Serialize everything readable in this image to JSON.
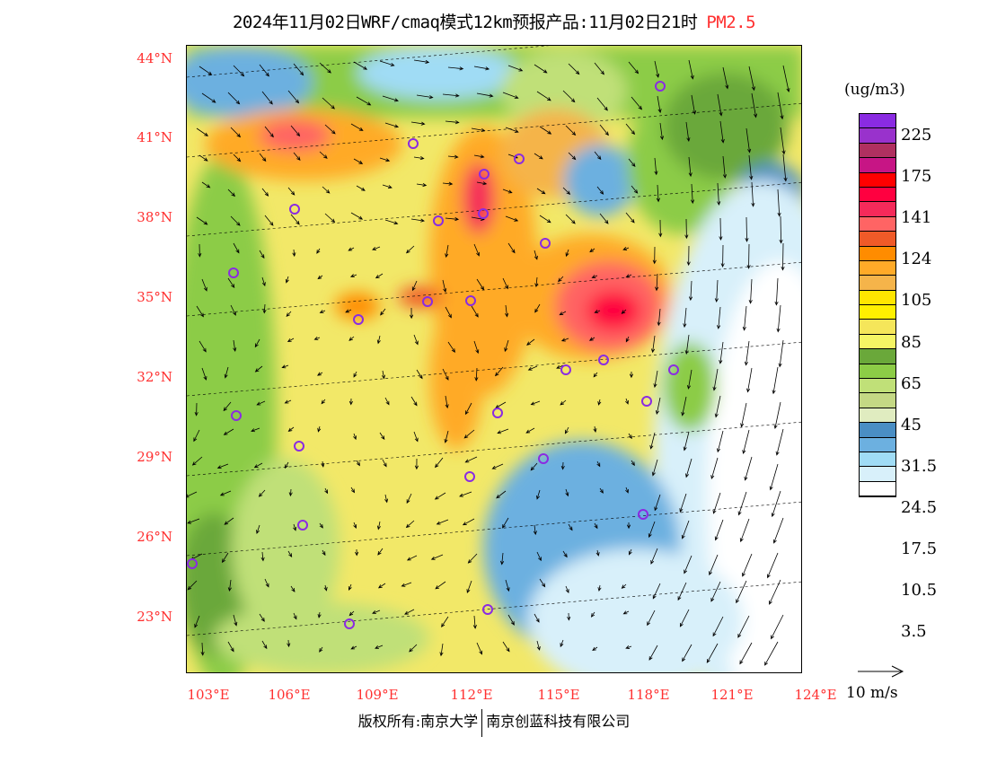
{
  "title": {
    "main": "2024年11月02日WRF/cmaq模式12km预报产品:11月02日21时",
    "pollutant": "PM2.5"
  },
  "lat_labels": [
    "44°N",
    "41°N",
    "38°N",
    "35°N",
    "32°N",
    "29°N",
    "26°N",
    "23°N"
  ],
  "lon_labels": [
    "103°E",
    "106°E",
    "109°E",
    "112°E",
    "115°E",
    "118°E",
    "121°E",
    "124°E"
  ],
  "legend": {
    "unit": "(ug/m3)",
    "colors": [
      "#8a2be2",
      "#9932cc",
      "#b03060",
      "#c71585",
      "#ff0000",
      "#ff0040",
      "#f52a5a",
      "#ff6464",
      "#f05a28",
      "#ff8c00",
      "#ffaa28",
      "#f5b44a",
      "#ffe600",
      "#fff000",
      "#f5e65a",
      "#f5f564",
      "#6aa83a",
      "#8ccc46",
      "#c0e078",
      "#c4d884",
      "#e0ecc0",
      "#4a8ec4",
      "#6cb0e0",
      "#a0dcf5",
      "#d8f0fa",
      "#ffffff"
    ],
    "labels": [
      "225",
      "175",
      "141",
      "124",
      "105",
      "85",
      "65",
      "45",
      "31.5",
      "24.5",
      "17.5",
      "10.5",
      "3.5"
    ]
  },
  "wind_reference": "10 m/s",
  "copyright": {
    "left": "版权所有:南京大学",
    "right": "南京创蓝科技有限公司"
  }
}
